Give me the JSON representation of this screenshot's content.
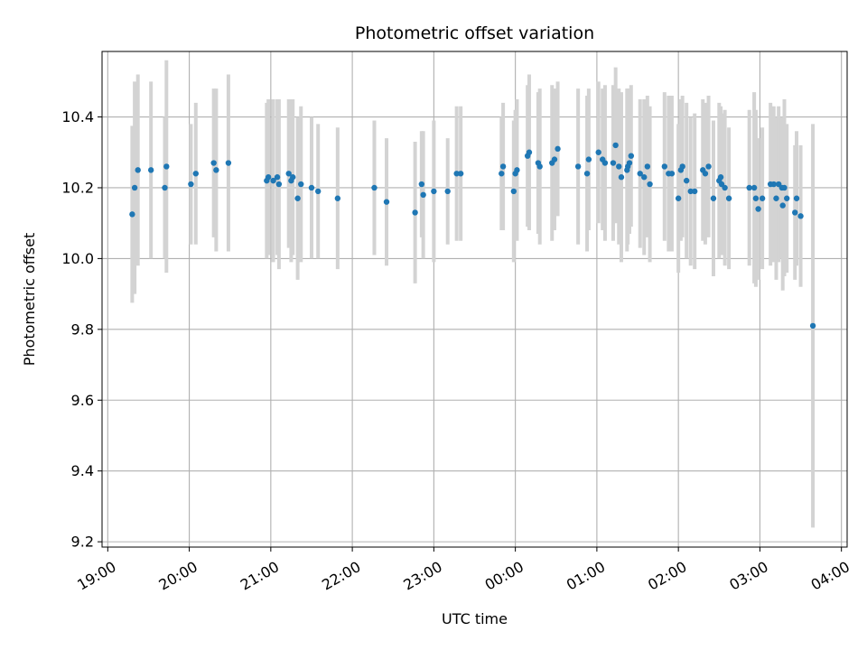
{
  "chart_data": {
    "type": "scatter",
    "title": "Photometric offset variation",
    "xlabel": "UTC time",
    "ylabel": "Photometric offset",
    "grid": true,
    "xlim": [
      -0.07,
      9.07
    ],
    "ylim": [
      9.185,
      10.585
    ],
    "x_ticks": [
      0,
      1,
      2,
      3,
      4,
      5,
      6,
      7,
      8,
      9
    ],
    "x_tick_labels": [
      "19:00",
      "20:00",
      "21:00",
      "22:00",
      "23:00",
      "00:00",
      "01:00",
      "02:00",
      "03:00",
      "04:00"
    ],
    "y_ticks": [
      9.2,
      9.4,
      9.6,
      9.8,
      10.0,
      10.2,
      10.4
    ],
    "y_tick_labels": [
      "9.2",
      "9.4",
      "9.6",
      "9.8",
      "10.0",
      "10.2",
      "10.4"
    ],
    "marker_color": "#1f77b4",
    "errorbar_color": "#d3d3d3",
    "series": [
      {
        "name": "Photometric offset",
        "x": [
          0.3,
          0.33,
          0.37,
          0.53,
          0.72,
          0.7,
          1.02,
          1.08,
          1.3,
          1.33,
          1.48,
          1.95,
          1.97,
          2.03,
          2.08,
          2.1,
          2.22,
          2.25,
          2.27,
          2.33,
          2.37,
          2.5,
          2.58,
          2.82,
          3.27,
          3.42,
          3.77,
          3.85,
          3.87,
          4.0,
          4.17,
          4.28,
          4.33,
          4.83,
          4.85,
          4.98,
          5.0,
          5.02,
          5.15,
          5.17,
          5.28,
          5.3,
          5.45,
          5.48,
          5.52,
          5.77,
          5.88,
          5.9,
          6.02,
          6.07,
          6.1,
          6.2,
          6.23,
          6.27,
          6.3,
          6.37,
          6.38,
          6.4,
          6.42,
          6.53,
          6.58,
          6.62,
          6.65,
          6.83,
          6.88,
          6.92,
          7.0,
          7.03,
          7.05,
          7.1,
          7.15,
          7.2,
          7.3,
          7.33,
          7.37,
          7.43,
          7.5,
          7.52,
          7.53,
          7.57,
          7.62,
          7.87,
          7.93,
          7.95,
          7.98,
          8.03,
          8.13,
          8.17,
          8.2,
          8.23,
          8.27,
          8.28,
          8.3,
          8.33,
          8.43,
          8.45,
          8.5,
          8.65
        ],
        "y": [
          10.125,
          10.2,
          10.25,
          10.25,
          10.26,
          10.2,
          10.21,
          10.24,
          10.27,
          10.25,
          10.27,
          10.22,
          10.23,
          10.22,
          10.23,
          10.21,
          10.24,
          10.22,
          10.23,
          10.17,
          10.21,
          10.2,
          10.19,
          10.17,
          10.2,
          10.16,
          10.13,
          10.21,
          10.18,
          10.19,
          10.19,
          10.24,
          10.24,
          10.24,
          10.26,
          10.19,
          10.24,
          10.25,
          10.29,
          10.3,
          10.27,
          10.26,
          10.27,
          10.28,
          10.31,
          10.26,
          10.24,
          10.28,
          10.3,
          10.28,
          10.27,
          10.27,
          10.32,
          10.26,
          10.23,
          10.25,
          10.26,
          10.27,
          10.29,
          10.24,
          10.23,
          10.26,
          10.21,
          10.26,
          10.24,
          10.24,
          10.17,
          10.25,
          10.26,
          10.22,
          10.19,
          10.19,
          10.25,
          10.24,
          10.26,
          10.17,
          10.22,
          10.23,
          10.21,
          10.2,
          10.17,
          10.2,
          10.2,
          10.17,
          10.14,
          10.17,
          10.21,
          10.21,
          10.17,
          10.21,
          10.2,
          10.15,
          10.2,
          10.17,
          10.13,
          10.17,
          10.12,
          9.81
        ],
        "y_err": [
          0.25,
          0.3,
          0.27,
          0.25,
          0.3,
          0.2,
          0.17,
          0.2,
          0.21,
          0.23,
          0.25,
          0.22,
          0.22,
          0.23,
          0.22,
          0.24,
          0.21,
          0.23,
          0.22,
          0.23,
          0.22,
          0.2,
          0.19,
          0.2,
          0.19,
          0.18,
          0.2,
          0.15,
          0.18,
          0.2,
          0.15,
          0.19,
          0.19,
          0.16,
          0.18,
          0.2,
          0.18,
          0.2,
          0.2,
          0.22,
          0.2,
          0.22,
          0.22,
          0.2,
          0.19,
          0.22,
          0.22,
          0.2,
          0.2,
          0.2,
          0.22,
          0.22,
          0.22,
          0.22,
          0.24,
          0.23,
          0.22,
          0.2,
          0.2,
          0.21,
          0.22,
          0.2,
          0.22,
          0.21,
          0.22,
          0.22,
          0.21,
          0.2,
          0.2,
          0.22,
          0.21,
          0.22,
          0.2,
          0.2,
          0.2,
          0.22,
          0.22,
          0.2,
          0.2,
          0.22,
          0.2,
          0.22,
          0.27,
          0.25,
          0.2,
          0.2,
          0.23,
          0.22,
          0.23,
          0.22,
          0.2,
          0.24,
          0.25,
          0.21,
          0.19,
          0.19,
          0.2,
          0.57
        ]
      }
    ]
  }
}
